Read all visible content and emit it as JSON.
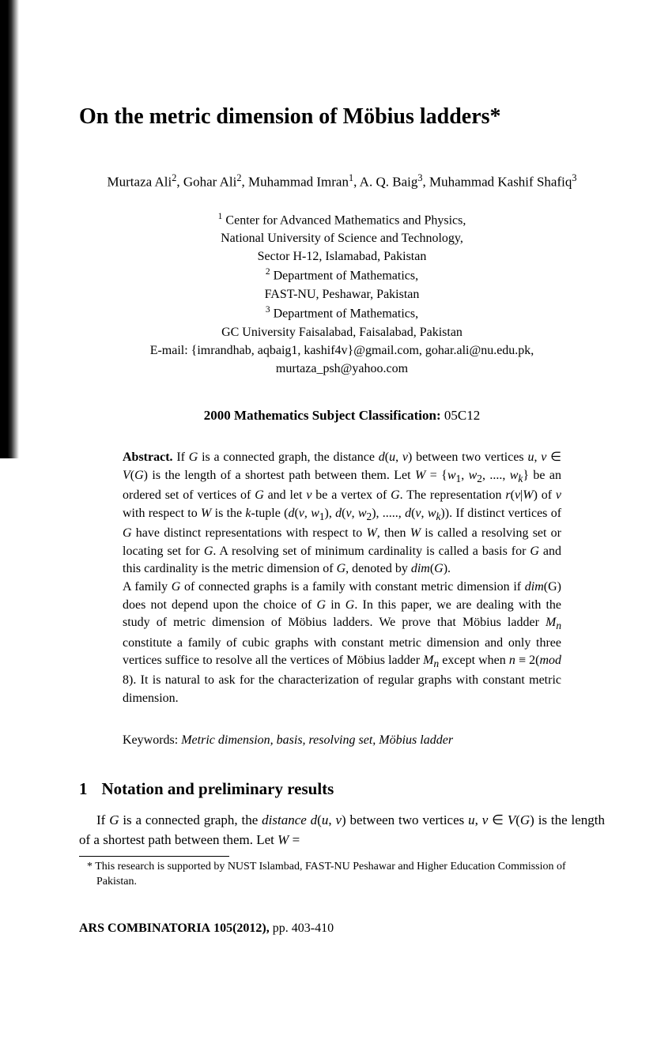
{
  "title": "On the metric dimension of Möbius ladders*",
  "authors_html": "Murtaza Ali<sup>2</sup>, Gohar Ali<sup>2</sup>, Muhammad Imran<sup>1</sup>, A. Q. Baig<sup>3</sup>, Muhammad Kashif Shafiq<sup>3</sup>",
  "affiliations_html": "<sup>1</sup> Center for Advanced Mathematics and Physics,<br>National University of Science and Technology,<br>Sector H-12, Islamabad, Pakistan<br><sup>2</sup> Department of Mathematics,<br>FAST-NU, Peshawar, Pakistan<br><sup>3</sup> Department of Mathematics,<br>GC University Faisalabad, Faisalabad, Pakistan<br>E-mail: {imrandhab, aqbaig1, kashif4v}@gmail.com, gohar.ali@nu.edu.pk, murtaza_psh@yahoo.com",
  "msc_label": "2000 Mathematics Subject Classification:",
  "msc_code": "05C12",
  "abstract_label": "Abstract.",
  "abstract_html": "If <i>G</i> is a connected graph, the distance <i>d</i>(<i>u</i>, <i>v</i>) between two vertices <i>u</i>, <i>v</i> ∈ <i>V</i>(<i>G</i>) is the length of a shortest path between them. Let <i>W</i> = {<i>w</i><sub>1</sub>, <i>w</i><sub>2</sub>, ...., <i>w<sub>k</sub></i>} be an ordered set of vertices of <i>G</i> and let <i>v</i> be a vertex of <i>G</i>. The representation <i>r</i>(<i>v</i>|<i>W</i>) of <i>v</i> with respect to <i>W</i> is the <i>k</i>-tuple (<i>d</i>(<i>v</i>, <i>w</i><sub>1</sub>), <i>d</i>(<i>v</i>, <i>w</i><sub>2</sub>), ....., <i>d</i>(<i>v</i>, <i>w<sub>k</sub></i>)). If distinct vertices of <i>G</i> have distinct representations with respect to <i>W</i>, then <i>W</i> is called a resolving set or locating set for <i>G</i>. A resolving set of minimum cardinality is called a basis for <i>G</i> and this cardinality is the metric dimension of <i>G</i>, denoted by <i>dim</i>(<i>G</i>).<br>A family <i>G</i> of connected graphs is a family with constant metric dimension if <i>dim</i>(G) does not depend upon the choice of <i>G</i> in <i>G</i>. In this paper, we are dealing with the study of metric dimension of Möbius ladders. We prove that Möbius ladder <i>M<sub>n</sub></i> constitute a family of cubic graphs with constant metric dimension and only three vertices suffice to resolve all the vertices of Möbius ladder <i>M<sub>n</sub></i> except when <i>n</i> ≡ 2(<i>mod</i> 8). It is natural to ask for the characterization of regular graphs with constant metric dimension.",
  "keywords_label": "Keywords:",
  "keywords_content": "Metric dimension, basis, resolving set, Möbius ladder",
  "section": {
    "number": "1",
    "title": "Notation and preliminary results"
  },
  "body_html": "If <i>G</i> is a connected graph, the <i>distance d</i>(<i>u</i>, <i>v</i>) between two vertices <i>u</i>, <i>v</i> ∈ <i>V</i>(<i>G</i>) is the length of a shortest path between them. Let <i>W</i> =",
  "footnote": "* This research is supported by NUST Islambad, FAST-NU Peshawar and Higher Education Commission of Pakistan.",
  "journal": {
    "name": "ARS COMBINATORIA",
    "volume": "105(2012),",
    "pages": "pp. 403-410"
  },
  "colors": {
    "text": "#000000",
    "background": "#ffffff"
  },
  "typography": {
    "title_size": 28,
    "body_size": 17,
    "abstract_size": 16,
    "footnote_size": 14,
    "font_family": "Times New Roman"
  }
}
